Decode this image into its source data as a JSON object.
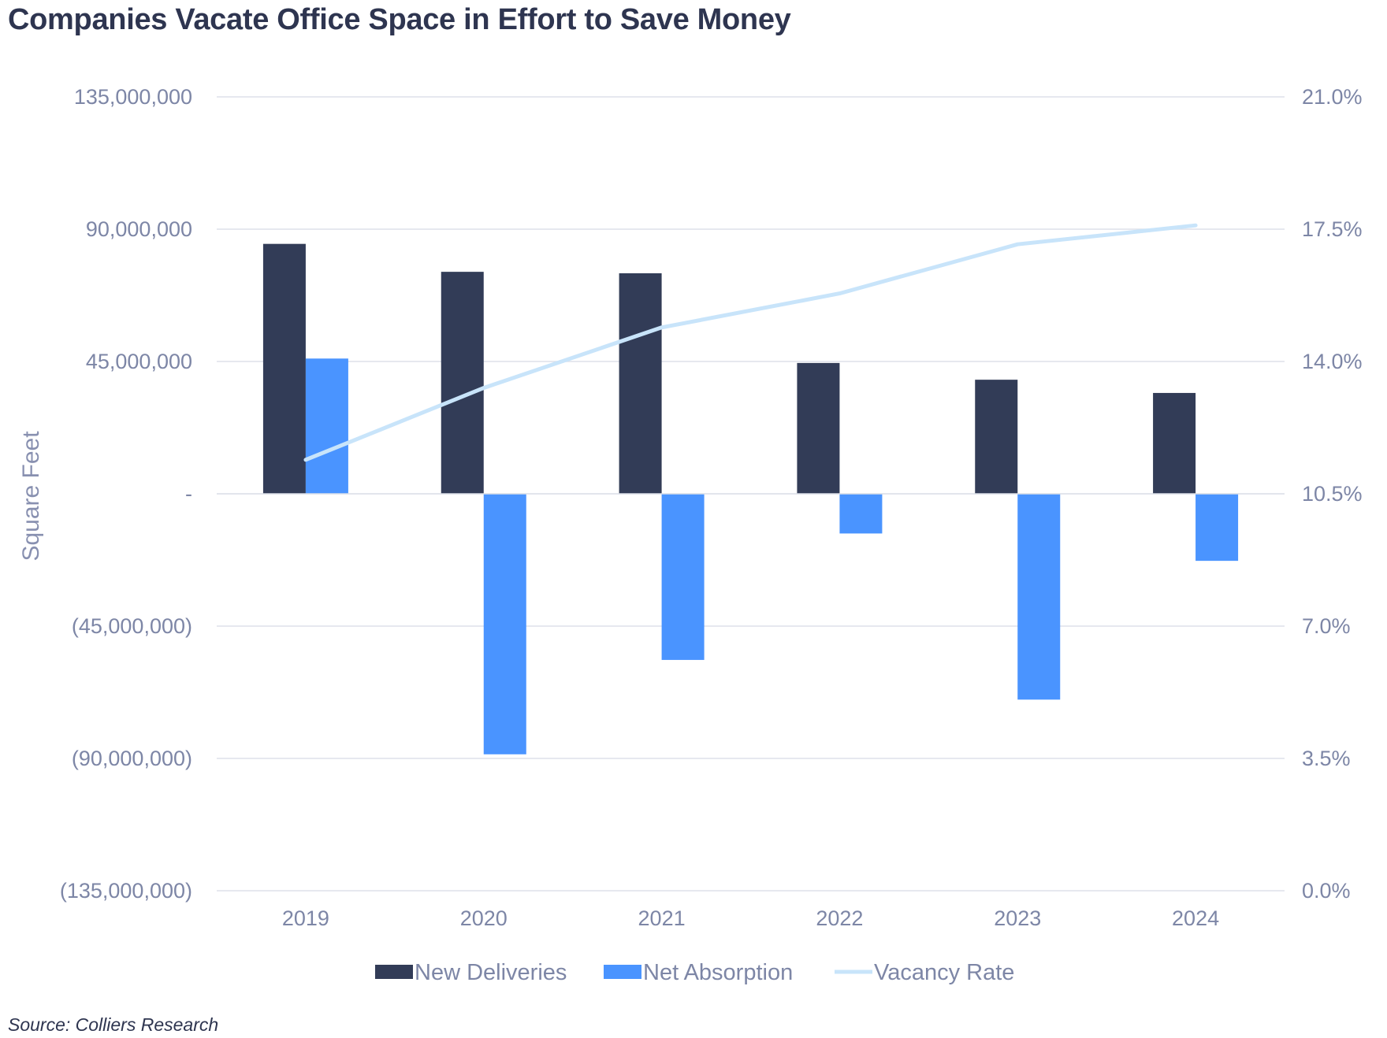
{
  "title": "Companies Vacate Office Space in Effort to Save Money",
  "source": "Source: Colliers Research",
  "colors": {
    "new_deliveries": "#323c57",
    "net_absorption": "#4a94ff",
    "vacancy_rate": "#c8e4fa",
    "grid": "#dde1ea",
    "tick": "#7d86a6"
  },
  "chart_data": {
    "type": "bar",
    "title": "Companies Vacate Office Space in Effort to Save Money",
    "ylabel": "Square Feet",
    "categories": [
      "2019",
      "2020",
      "2021",
      "2022",
      "2023",
      "2024"
    ],
    "ylim": [
      -135000000,
      135000000
    ],
    "y2lim": [
      0,
      21
    ],
    "yticks": [
      {
        "value": 135000000,
        "label": "135,000,000"
      },
      {
        "value": 90000000,
        "label": "90,000,000"
      },
      {
        "value": 45000000,
        "label": "45,000,000"
      },
      {
        "value": 0,
        "label": "-"
      },
      {
        "value": -45000000,
        "label": "(45,000,000)"
      },
      {
        "value": -90000000,
        "label": "(90,000,000)"
      },
      {
        "value": -135000000,
        "label": "(135,000,000)"
      }
    ],
    "y2ticks": [
      {
        "value": 21.0,
        "label": "21.0%"
      },
      {
        "value": 17.5,
        "label": "17.5%"
      },
      {
        "value": 14.0,
        "label": "14.0%"
      },
      {
        "value": 10.5,
        "label": "10.5%"
      },
      {
        "value": 7.0,
        "label": "7.0%"
      },
      {
        "value": 3.5,
        "label": "3.5%"
      },
      {
        "value": 0.0,
        "label": "0.0%"
      }
    ],
    "series": [
      {
        "name": "New Deliveries",
        "type": "bar",
        "axis": "left",
        "values": [
          85000000,
          75500000,
          75000000,
          44500000,
          38800000,
          34300000
        ]
      },
      {
        "name": "Net Absorption",
        "type": "bar",
        "axis": "left",
        "values": [
          46000000,
          -88600000,
          -56500000,
          -13500000,
          -70000000,
          -22800000
        ]
      },
      {
        "name": "Vacancy Rate",
        "type": "line",
        "axis": "right",
        "values": [
          11.4,
          13.3,
          14.9,
          15.8,
          17.1,
          17.6
        ]
      }
    ],
    "legend": {
      "position": "bottom",
      "items": [
        {
          "label": "New Deliveries",
          "kind": "bar"
        },
        {
          "label": "Net Absorption",
          "kind": "bar"
        },
        {
          "label": "Vacancy Rate",
          "kind": "line"
        }
      ]
    },
    "grid": true
  }
}
